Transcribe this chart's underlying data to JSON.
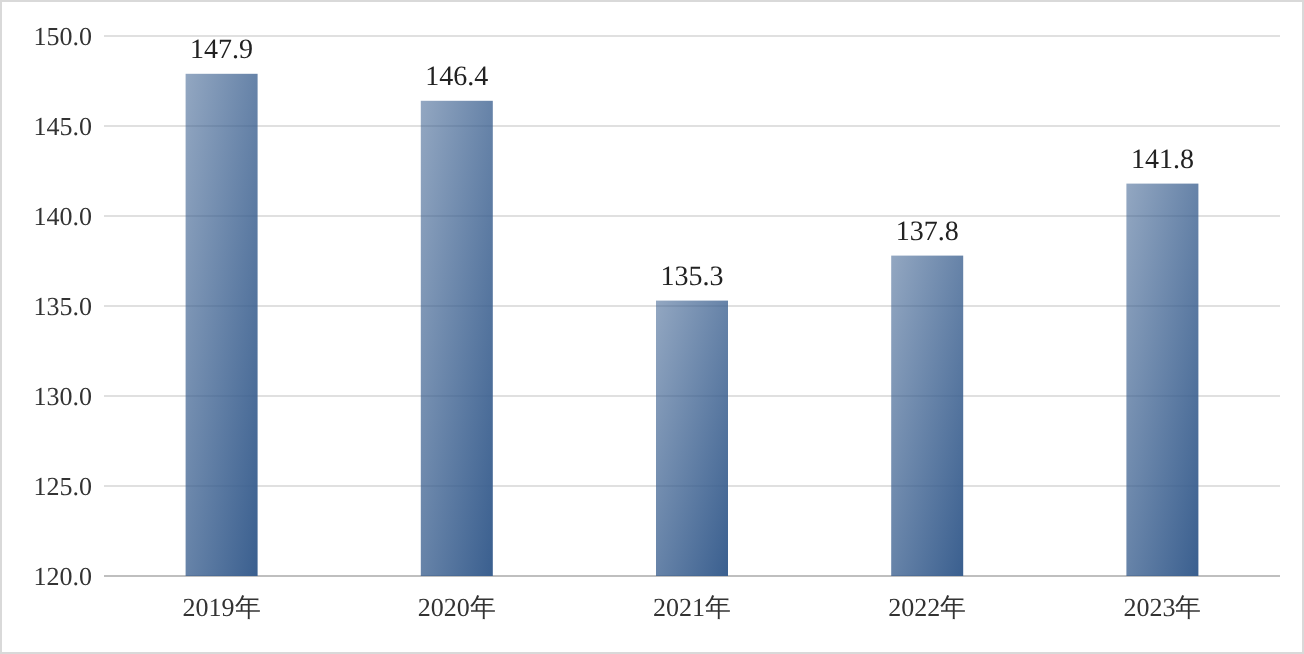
{
  "chart_data": {
    "type": "bar",
    "categories": [
      "2019年",
      "2020年",
      "2021年",
      "2022年",
      "2023年"
    ],
    "values": [
      147.9,
      146.4,
      135.3,
      137.8,
      141.8
    ],
    "color": "#3a5f8f",
    "ylim": [
      120,
      150
    ],
    "yticks": [
      {
        "value": 120,
        "label": "120.0"
      },
      {
        "value": 125,
        "label": "125.0"
      },
      {
        "value": 130,
        "label": "130.0"
      },
      {
        "value": 135,
        "label": "135.0"
      },
      {
        "value": 140,
        "label": "140.0"
      },
      {
        "value": 145,
        "label": "145.0"
      },
      {
        "value": 150,
        "label": "150.0"
      }
    ],
    "grid": "y",
    "data_labels": true
  }
}
